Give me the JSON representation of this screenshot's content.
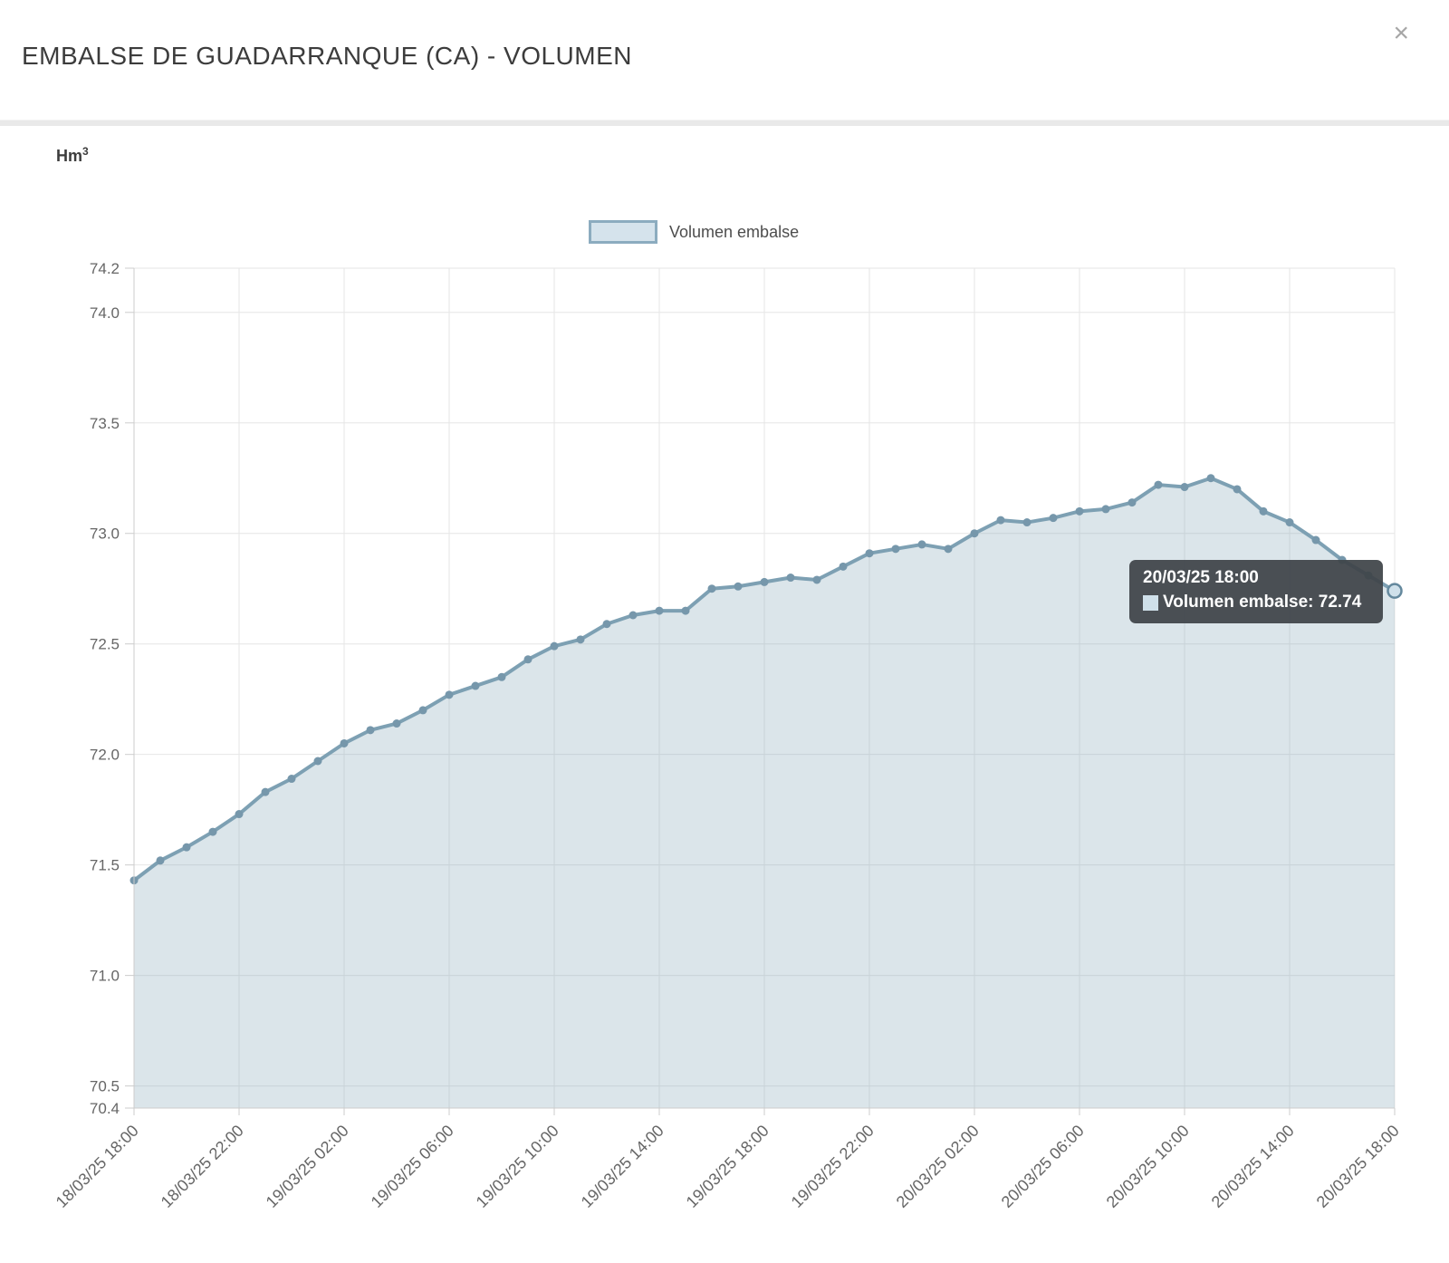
{
  "modal": {
    "title": "EMBALSE DE GUADARRANQUE (CA) - VOLUMEN",
    "close_icon": "×"
  },
  "chart_data": {
    "type": "area",
    "title": "EMBALSE DE GUADARRANQUE (CA) - VOLUMEN",
    "unit_base": "Hm",
    "unit_exp": "3",
    "legend": [
      {
        "label": "Volumen embalse"
      }
    ],
    "legend_position": "top-center",
    "grid": true,
    "ylim": [
      70.4,
      74.2
    ],
    "y_tick_labels": [
      "74.2",
      "74.0",
      "73.5",
      "73.0",
      "72.5",
      "72.0",
      "71.5",
      "71.0",
      "70.5",
      "70.4"
    ],
    "y_tick_values": [
      74.2,
      74.0,
      73.5,
      73.0,
      72.5,
      72.0,
      71.5,
      71.0,
      70.5,
      70.4
    ],
    "x_tick_labels": [
      "18/03/25 18:00",
      "18/03/25 22:00",
      "19/03/25 02:00",
      "19/03/25 06:00",
      "19/03/25 10:00",
      "19/03/25 14:00",
      "19/03/25 18:00",
      "19/03/25 22:00",
      "20/03/25 02:00",
      "20/03/25 06:00",
      "20/03/25 10:00",
      "20/03/25 14:00",
      "20/03/25 18:00"
    ],
    "x_tick_every": 4,
    "x_interval": "1 hour",
    "series": [
      {
        "name": "Volumen embalse",
        "values": [
          71.43,
          71.52,
          71.58,
          71.65,
          71.73,
          71.83,
          71.89,
          71.97,
          72.05,
          72.11,
          72.14,
          72.2,
          72.27,
          72.31,
          72.35,
          72.43,
          72.49,
          72.52,
          72.59,
          72.63,
          72.65,
          72.65,
          72.75,
          72.76,
          72.78,
          72.8,
          72.79,
          72.85,
          72.91,
          72.93,
          72.95,
          72.93,
          73.0,
          73.06,
          73.05,
          73.07,
          73.1,
          73.11,
          73.14,
          73.22,
          73.21,
          73.25,
          73.2,
          73.1,
          73.05,
          72.97,
          72.88,
          72.81,
          72.74
        ]
      }
    ],
    "colors": {
      "line": "#7da0b3",
      "fill": "rgba(125,160,179,0.28)",
      "marker": "#7697ab",
      "grid": "#e6e6e6",
      "axis": "#cccccc",
      "tick_label": "#666666",
      "hover_fill": "#cfe0ea",
      "hover_stroke": "#64889d",
      "legend_fill": "#d5e3ec",
      "legend_border": "#8cacbf",
      "tooltip_bg": "rgba(62,68,72,0.93)",
      "tooltip_swatch": "#cfe0ea"
    }
  },
  "tooltip": {
    "date": "20/03/25 18:00",
    "series": "Volumen embalse",
    "value": "72.74",
    "line2": "Volumen embalse: 72.74"
  }
}
